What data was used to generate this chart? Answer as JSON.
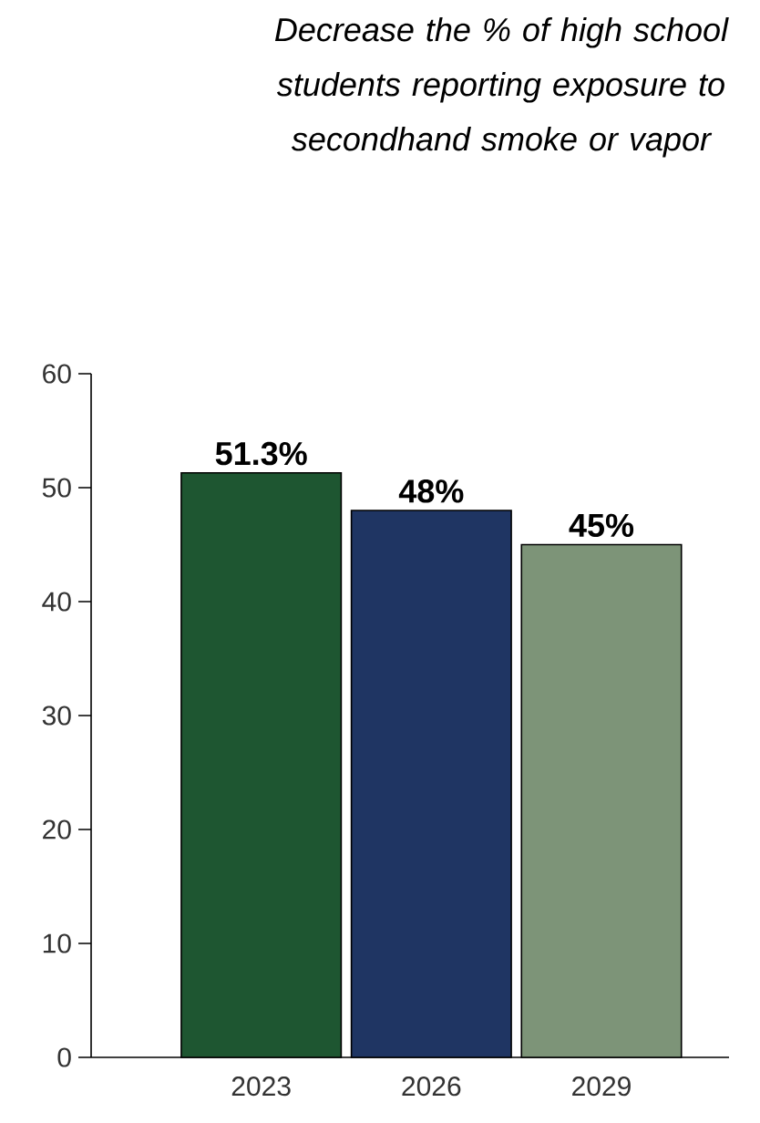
{
  "chart_data": {
    "type": "bar",
    "title": "Decrease the % of high school students reporting exposure to secondhand smoke or vapor",
    "categories": [
      "2023",
      "2026",
      "2029"
    ],
    "values": [
      51.3,
      48,
      45
    ],
    "colors": [
      "#1e5631",
      "#1f3563",
      "#7d9478"
    ],
    "value_labels": [
      "51.3%",
      "48%",
      "45%"
    ],
    "ylim": [
      0,
      60
    ],
    "yticks": [
      0,
      10,
      20,
      30,
      40,
      50,
      60
    ]
  }
}
